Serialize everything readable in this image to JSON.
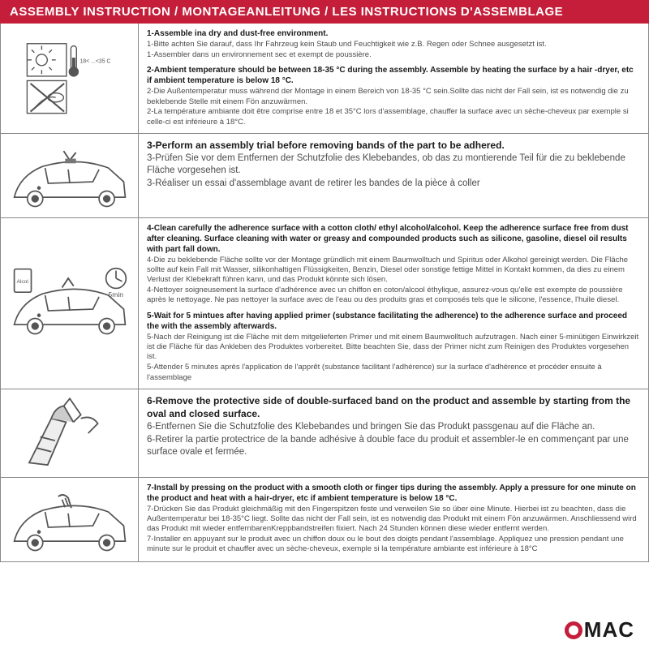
{
  "header": "ASSEMBLY INSTRUCTION / MONTAGEANLEITUNG / LES INSTRUCTIONS D'ASSEMBLAGE",
  "colors": {
    "header_bg": "#c41e3a",
    "text_gray": "#4a4a4a",
    "border": "#888888"
  },
  "logo": {
    "text": "MAC",
    "accent": "#c41e3a"
  },
  "rows": [
    {
      "icon": "sun-thermo",
      "steps": [
        {
          "bold": "1-Assemble ina dry and dust-free environment.",
          "lines": [
            "1-Bitte achten Sie darauf, dass Ihr Fahrzeug kein Staub und Feuchtigkeit wie z.B. Regen oder Schnee ausgesetzt ist.",
            "1-Assembler dans un environnement sec et exempt de poussière."
          ]
        },
        {
          "bold": "2-Ambient temperature should be between 18-35 °C  during the assembly. Assemble by heating the surface by a hair -dryer, etc if ambient temperature is below 18 °C.",
          "lines": [
            "2-Die Außentemperatur muss während der Montage in einem Bereich von 18-35 °C  sein.Sollte das nicht der Fall sein, ist es notwendig die zu beklebende Stelle mit einem Fön anzuwärmen.",
            "2-La température ambiante doit être comprise entre 18 et 35°C lors d'assemblage, chauffer la surface avec un sèche-cheveux par exemple si celle-ci est inférieure à 18°C."
          ]
        }
      ]
    },
    {
      "icon": "car-trial",
      "steps": [
        {
          "bold": "3-Perform an assembly trial before removing bands of the part to be adhered.",
          "lines": [
            "3-Prüfen Sie vor dem Entfernen der Schutzfolie des Klebebandes, ob das zu montierende Teil für die zu beklebende Fläche vorgesehen ist.",
            "3-Réaliser un essai d'assemblage avant de retirer les bandes de la pièce à coller"
          ],
          "large": true
        }
      ]
    },
    {
      "icon": "car-clean",
      "steps": [
        {
          "bold": "4-Clean carefully the adherence surface with a cotton cloth/ ethyl alcohol/alcohol. Keep the adherence surface free from dust after cleaning. Surface cleaning with water or greasy and compounded products such as silicone, gasoline, diesel oil results with part fall down.",
          "lines": [
            "4-Die zu beklebende Fläche sollte vor der Montage gründlich mit einem Baumwolltuch und Spiritus oder Alkohol gereinigt werden. Die Fläche sollte auf kein Fall mit Wasser, silikonhaltigen Flüssigkeiten, Benzin, Diesel oder sonstige fettige Mittel in Kontakt kommen, da dies zu einem Verlust der Klebekraft führen kann, und das Produkt könnte sich lösen.",
            "4-Nettoyer soigneusement la surface d'adhérence avec un chiffon en coton/alcool éthylique, assurez-vous qu'elle est exempte de poussière après le nettoyage. Ne pas nettoyer la surface avec de l'eau ou des produits gras et composés tels que le silicone, l'essence, l'huile diesel."
          ]
        },
        {
          "bold": "5-Wait for 5 mintues after having applied primer (substance facilitating the adherence) to the adherence surface and proceed the with the assembly afterwards.",
          "lines": [
            "5-Nach der Reinigung ist die Fläche mit dem mitgelieferten Primer und mit einem Baumwolltuch aufzutragen. Nach einer 5-minütigen Einwirkzeit ist die Fläche für das Ankleben des Produktes vorbereitet. Bitte beachten Sie, dass der Primer nicht zum Reinigen des Produktes vorgesehen ist.",
            "5-Attender 5 minutes après l'application de l'apprêt (substance facilitant l'adhérence) sur la surface d'adhérence et procéder ensuite à l'assemblage"
          ]
        }
      ]
    },
    {
      "icon": "peel-tape",
      "steps": [
        {
          "bold": "6-Remove the protective side of double-surfaced band on the product and assemble by starting from the oval and closed surface.",
          "lines": [
            "6-Entfernen Sie die Schutzfolie des Klebebandes und bringen Sie das Produkt passgenau auf die Fläche an.",
            "6-Retirer la partie protectrice de la bande adhésive à double face du produit et assembler-le en commençant par une surface ovale et fermée."
          ],
          "large": true
        }
      ]
    },
    {
      "icon": "car-press",
      "steps": [
        {
          "bold": "7-Install by pressing on the product with a smooth cloth or finger tips during the assembly. Apply a pressure for one minute on the product and heat with a hair-dryer, etc if ambient temperature is below 18 °C.",
          "lines": [
            "7-Drücken Sie das Produkt gleichmäßig mit den Fingerspitzen feste und verweilen Sie so über eine Minute. Hierbei ist zu beachten, dass die Außentemperatur bei 18-35°C liegt. Sollte das nicht der Fall sein, ist es notwendig das Produkt mit einem Fön anzuwärmen. Anschliessend wird das Produkt mit wieder entfernbarenKreppbandstreifen fixiert. Nach 24 Stunden können diese wieder entfernt werden.",
            "7-Installer en appuyant sur le produit avec un chiffon doux ou le bout des doigts pendant l'assemblage. Appliquez une pression pendant une minute sur le produit et chauffer avec un sèche-cheveux, exemple si la température ambiante est inférieure à 18°C"
          ]
        }
      ]
    }
  ]
}
